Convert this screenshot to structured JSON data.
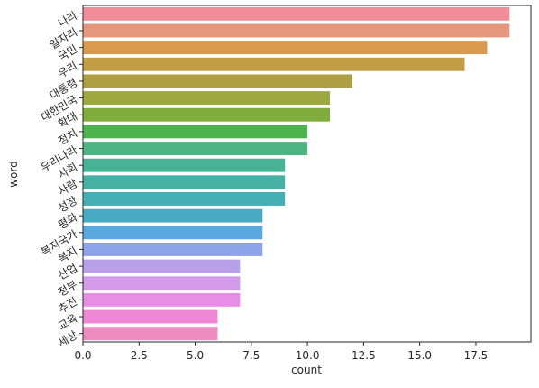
{
  "chart_data": {
    "type": "bar",
    "orientation": "horizontal",
    "xlabel": "count",
    "ylabel": "word",
    "xlim": [
      0,
      19.95
    ],
    "xticks": [
      0.0,
      2.5,
      5.0,
      7.5,
      10.0,
      12.5,
      15.0,
      17.5
    ],
    "xtick_labels": [
      "0.0",
      "2.5",
      "5.0",
      "7.5",
      "10.0",
      "12.5",
      "15.0",
      "17.5"
    ],
    "grid": false,
    "categories": [
      "나라",
      "일자리",
      "국민",
      "우리",
      "대통령",
      "대한민국",
      "확대",
      "정치",
      "우리나라",
      "사회",
      "사람",
      "성장",
      "평화",
      "복지국가",
      "복지",
      "산업",
      "정부",
      "추진",
      "교육",
      "세상"
    ],
    "values": [
      19,
      19,
      18,
      17,
      12,
      11,
      11,
      10,
      10,
      9,
      9,
      9,
      8,
      8,
      8,
      7,
      7,
      7,
      6,
      6
    ],
    "colors": [
      "#f08d99",
      "#e5967b",
      "#d89a4f",
      "#c29d45",
      "#ad9f42",
      "#9ea841",
      "#80ac3e",
      "#4cb44f",
      "#4db380",
      "#48b295",
      "#45b0a3",
      "#43aeb3",
      "#48a9c5",
      "#58a7df",
      "#8ea2eb",
      "#b9a1ea",
      "#d49aea",
      "#e88de5",
      "#ee88d3",
      "#ee8cc2"
    ]
  }
}
